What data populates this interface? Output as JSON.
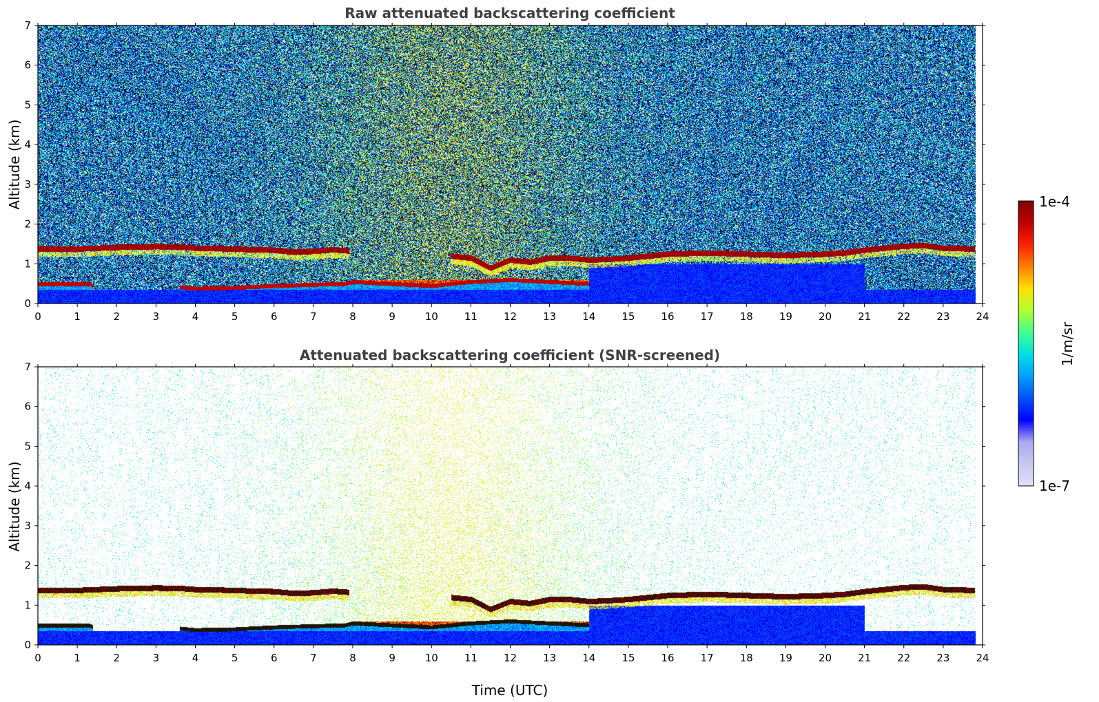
{
  "chart_data": [
    {
      "type": "heatmap",
      "title": "Raw attenuated backscattering coefficient",
      "xlabel": "",
      "ylabel": "Altitude (km)",
      "xlim": [
        0,
        24
      ],
      "ylim": [
        0,
        7
      ],
      "x_ticks": [
        0,
        1,
        2,
        3,
        4,
        5,
        6,
        7,
        8,
        9,
        10,
        11,
        12,
        13,
        14,
        15,
        16,
        17,
        18,
        19,
        20,
        21,
        22,
        23,
        24
      ],
      "y_ticks": [
        0,
        1,
        2,
        3,
        4,
        5,
        6,
        7
      ],
      "data_end_time": 23.8,
      "cloud_base_km": [
        [
          0,
          1.38
        ],
        [
          1,
          1.38
        ],
        [
          2,
          1.42
        ],
        [
          3,
          1.44
        ],
        [
          3.6,
          1.43
        ],
        [
          4,
          1.4
        ],
        [
          5,
          1.38
        ],
        [
          5.5,
          1.36
        ],
        [
          6,
          1.35
        ],
        [
          6.5,
          1.3
        ],
        [
          7,
          1.32
        ],
        [
          7.5,
          1.36
        ],
        [
          7.9,
          1.33
        ],
        [
          10.5,
          1.2
        ],
        [
          11,
          1.15
        ],
        [
          11.5,
          0.9
        ],
        [
          12,
          1.1
        ],
        [
          12.5,
          1.05
        ],
        [
          13,
          1.15
        ],
        [
          13.5,
          1.15
        ],
        [
          14,
          1.1
        ],
        [
          14.5,
          1.12
        ],
        [
          15,
          1.15
        ],
        [
          16,
          1.25
        ],
        [
          17,
          1.28
        ],
        [
          18,
          1.25
        ],
        [
          19,
          1.22
        ],
        [
          20,
          1.25
        ],
        [
          20.5,
          1.28
        ],
        [
          21,
          1.35
        ],
        [
          22,
          1.45
        ],
        [
          22.5,
          1.47
        ],
        [
          23,
          1.4
        ],
        [
          23.8,
          1.38
        ]
      ],
      "boundary_layer_top_km": [
        [
          0,
          0.5
        ],
        [
          1.3,
          0.5
        ],
        [
          1.4,
          0.45
        ],
        [
          3.6,
          0.42
        ],
        [
          4,
          0.38
        ],
        [
          5,
          0.4
        ],
        [
          6,
          0.45
        ],
        [
          7,
          0.48
        ],
        [
          7.8,
          0.5
        ],
        [
          8,
          0.55
        ],
        [
          9,
          0.5
        ],
        [
          10,
          0.45
        ],
        [
          11,
          0.55
        ],
        [
          12,
          0.6
        ],
        [
          13,
          0.55
        ],
        [
          14,
          0.5
        ]
      ]
    },
    {
      "type": "heatmap",
      "title": "Attenuated backscattering coefficient (SNR-screened)",
      "xlabel": "Time (UTC)",
      "ylabel": "Altitude (km)",
      "xlim": [
        0,
        24
      ],
      "ylim": [
        0,
        7
      ],
      "x_ticks": [
        0,
        1,
        2,
        3,
        4,
        5,
        6,
        7,
        8,
        9,
        10,
        11,
        12,
        13,
        14,
        15,
        16,
        17,
        18,
        19,
        20,
        21,
        22,
        23,
        24
      ],
      "y_ticks": [
        0,
        1,
        2,
        3,
        4,
        5,
        6,
        7
      ],
      "data_end_time": 23.8
    }
  ],
  "colorbar": {
    "label": "1/m/sr",
    "max_label": "1e-4",
    "min_label": "1e-7",
    "colormap_stops": [
      "#e0e0f8",
      "#c8c8f0",
      "#aaaaee",
      "#0000ff",
      "#0050ff",
      "#00a0ff",
      "#00e0e0",
      "#40ff90",
      "#b0ff30",
      "#ffe000",
      "#ff8000",
      "#ff2000",
      "#c00000",
      "#800000"
    ]
  }
}
